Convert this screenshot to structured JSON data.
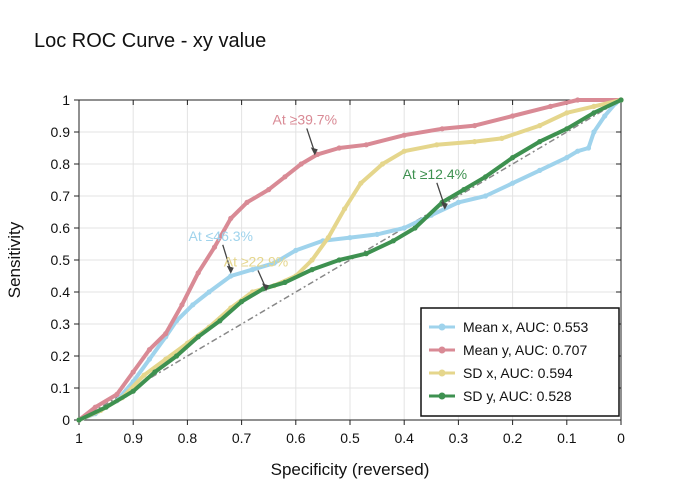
{
  "chart_data": {
    "type": "line",
    "title": "Loc ROC Curve - xy value",
    "xlabel": "Specificity (reversed)",
    "ylabel": "Sensitivity",
    "xlim": [
      1,
      0
    ],
    "ylim": [
      0,
      1
    ],
    "x_reversed": true,
    "grid": true,
    "legend_position": "bottom-right",
    "x_ticks": [
      1,
      0.9,
      0.8,
      0.7,
      0.6,
      0.5,
      0.4,
      0.3,
      0.2,
      0.1,
      0
    ],
    "x_tick_labels": [
      "1",
      "0.9",
      "0.8",
      "0.7",
      "0.6",
      "0.5",
      "0.4",
      "0.3",
      "0.2",
      "0.1",
      "0"
    ],
    "y_ticks": [
      0,
      0.1,
      0.2,
      0.3,
      0.4,
      0.5,
      0.6,
      0.7,
      0.8,
      0.9,
      1
    ],
    "y_tick_labels": [
      "0",
      "0.1",
      "0.2",
      "0.3",
      "0.4",
      "0.5",
      "0.6",
      "0.7",
      "0.8",
      "0.9",
      "1"
    ],
    "reference_line": {
      "from": [
        1,
        0
      ],
      "to": [
        0,
        1
      ],
      "style": "dash-dot",
      "color": "#888888"
    },
    "series": [
      {
        "name": "Mean x, AUC: 0.553",
        "color": "#9fd3ec",
        "points": [
          [
            1,
            0
          ],
          [
            0.97,
            0.02
          ],
          [
            0.93,
            0.06
          ],
          [
            0.9,
            0.12
          ],
          [
            0.87,
            0.19
          ],
          [
            0.84,
            0.26
          ],
          [
            0.82,
            0.31
          ],
          [
            0.79,
            0.36
          ],
          [
            0.76,
            0.4
          ],
          [
            0.72,
            0.45
          ],
          [
            0.68,
            0.47
          ],
          [
            0.64,
            0.49
          ],
          [
            0.6,
            0.53
          ],
          [
            0.55,
            0.56
          ],
          [
            0.5,
            0.57
          ],
          [
            0.45,
            0.58
          ],
          [
            0.4,
            0.6
          ],
          [
            0.35,
            0.64
          ],
          [
            0.3,
            0.68
          ],
          [
            0.25,
            0.7
          ],
          [
            0.2,
            0.74
          ],
          [
            0.15,
            0.78
          ],
          [
            0.1,
            0.82
          ],
          [
            0.08,
            0.84
          ],
          [
            0.06,
            0.85
          ],
          [
            0.05,
            0.9
          ],
          [
            0.03,
            0.95
          ],
          [
            0.01,
            0.99
          ],
          [
            0,
            1
          ]
        ]
      },
      {
        "name": "Mean y, AUC: 0.707",
        "color": "#d98a95",
        "points": [
          [
            1,
            0
          ],
          [
            0.97,
            0.04
          ],
          [
            0.93,
            0.08
          ],
          [
            0.9,
            0.15
          ],
          [
            0.87,
            0.22
          ],
          [
            0.84,
            0.27
          ],
          [
            0.81,
            0.36
          ],
          [
            0.78,
            0.46
          ],
          [
            0.75,
            0.54
          ],
          [
            0.72,
            0.63
          ],
          [
            0.69,
            0.68
          ],
          [
            0.65,
            0.72
          ],
          [
            0.62,
            0.76
          ],
          [
            0.59,
            0.8
          ],
          [
            0.56,
            0.83
          ],
          [
            0.52,
            0.85
          ],
          [
            0.47,
            0.86
          ],
          [
            0.4,
            0.89
          ],
          [
            0.33,
            0.91
          ],
          [
            0.27,
            0.92
          ],
          [
            0.2,
            0.95
          ],
          [
            0.13,
            0.98
          ],
          [
            0.08,
            1
          ],
          [
            0,
            1
          ]
        ]
      },
      {
        "name": "SD x, AUC: 0.594",
        "color": "#e5d68c",
        "points": [
          [
            1,
            0
          ],
          [
            0.96,
            0.03
          ],
          [
            0.92,
            0.07
          ],
          [
            0.88,
            0.14
          ],
          [
            0.84,
            0.19
          ],
          [
            0.8,
            0.24
          ],
          [
            0.76,
            0.29
          ],
          [
            0.72,
            0.35
          ],
          [
            0.68,
            0.4
          ],
          [
            0.64,
            0.42
          ],
          [
            0.6,
            0.45
          ],
          [
            0.57,
            0.5
          ],
          [
            0.54,
            0.57
          ],
          [
            0.51,
            0.66
          ],
          [
            0.48,
            0.74
          ],
          [
            0.44,
            0.8
          ],
          [
            0.4,
            0.84
          ],
          [
            0.34,
            0.86
          ],
          [
            0.27,
            0.87
          ],
          [
            0.22,
            0.88
          ],
          [
            0.15,
            0.92
          ],
          [
            0.1,
            0.96
          ],
          [
            0.05,
            0.98
          ],
          [
            0,
            1
          ]
        ]
      },
      {
        "name": "SD y, AUC: 0.528",
        "color": "#3e9150",
        "points": [
          [
            1,
            0
          ],
          [
            0.95,
            0.04
          ],
          [
            0.9,
            0.09
          ],
          [
            0.86,
            0.15
          ],
          [
            0.82,
            0.2
          ],
          [
            0.78,
            0.26
          ],
          [
            0.74,
            0.31
          ],
          [
            0.7,
            0.37
          ],
          [
            0.66,
            0.41
          ],
          [
            0.62,
            0.43
          ],
          [
            0.57,
            0.47
          ],
          [
            0.52,
            0.5
          ],
          [
            0.47,
            0.52
          ],
          [
            0.42,
            0.56
          ],
          [
            0.38,
            0.6
          ],
          [
            0.33,
            0.68
          ],
          [
            0.29,
            0.72
          ],
          [
            0.25,
            0.76
          ],
          [
            0.2,
            0.82
          ],
          [
            0.15,
            0.87
          ],
          [
            0.1,
            0.91
          ],
          [
            0.05,
            0.96
          ],
          [
            0,
            1
          ]
        ]
      }
    ],
    "annotations": [
      {
        "text": "At ≥39.7%",
        "color": "#d98a95",
        "x": 0.565,
        "y": 0.83
      },
      {
        "text": "At ≤46.3%",
        "color": "#9fd3ec",
        "x": 0.72,
        "y": 0.46
      },
      {
        "text": "At ≥22.9%",
        "color": "#e5d68c",
        "x": 0.655,
        "y": 0.405
      },
      {
        "text": "At ≥12.4%",
        "color": "#3e9150",
        "x": 0.325,
        "y": 0.66
      }
    ]
  }
}
